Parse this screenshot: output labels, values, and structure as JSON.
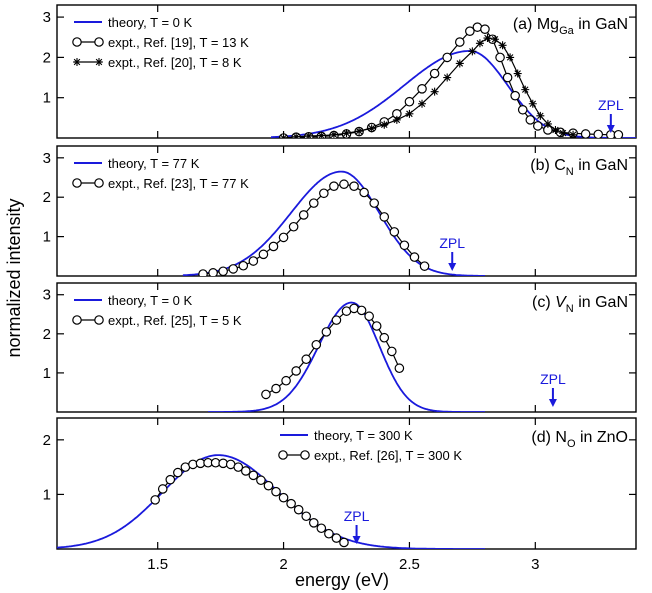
{
  "colors": {
    "theory": "#1a1adc",
    "expt": "#000000",
    "zpl": "#1a1adc"
  },
  "chart_data": [
    {
      "type": "line",
      "panel_label": "(a) Mg",
      "panel_label_sub": "Ga",
      "panel_label_suffix": " in GaN",
      "xlim": [
        1.1,
        3.4
      ],
      "ylim": [
        0,
        3.3
      ],
      "yticks": [
        1,
        2,
        3
      ],
      "legend_position": "top-left",
      "zpl": {
        "label": "ZPL",
        "x": 3.3
      },
      "series": [
        {
          "name": "theory, T = 0 K",
          "kind": "theory",
          "peak": 2.16,
          "center": 2.74,
          "sigma_left": 0.26,
          "sigma_right": 0.15,
          "x_start": 1.95,
          "x_end": 3.4,
          "points": []
        },
        {
          "name": "expt., Ref. [19], T = 13 K",
          "kind": "circle",
          "points": [
            [
              2.0,
              0.0
            ],
            [
              2.05,
              0.02
            ],
            [
              2.1,
              0.03
            ],
            [
              2.15,
              0.04
            ],
            [
              2.2,
              0.06
            ],
            [
              2.25,
              0.1
            ],
            [
              2.3,
              0.16
            ],
            [
              2.35,
              0.26
            ],
            [
              2.4,
              0.4
            ],
            [
              2.45,
              0.6
            ],
            [
              2.5,
              0.9
            ],
            [
              2.55,
              1.22
            ],
            [
              2.6,
              1.6
            ],
            [
              2.65,
              2.0
            ],
            [
              2.7,
              2.38
            ],
            [
              2.74,
              2.65
            ],
            [
              2.77,
              2.75
            ],
            [
              2.8,
              2.7
            ],
            [
              2.83,
              2.45
            ],
            [
              2.86,
              2.0
            ],
            [
              2.89,
              1.5
            ],
            [
              2.92,
              1.05
            ],
            [
              2.95,
              0.7
            ],
            [
              2.98,
              0.45
            ],
            [
              3.01,
              0.3
            ],
            [
              3.05,
              0.2
            ],
            [
              3.1,
              0.14
            ],
            [
              3.15,
              0.12
            ],
            [
              3.2,
              0.1
            ],
            [
              3.25,
              0.09
            ],
            [
              3.3,
              0.08
            ],
            [
              3.33,
              0.08
            ]
          ]
        },
        {
          "name": "expt., Ref. [20], T = 8 K",
          "kind": "star",
          "points": [
            [
              2.0,
              0.0
            ],
            [
              2.05,
              0.03
            ],
            [
              2.1,
              0.05
            ],
            [
              2.15,
              0.06
            ],
            [
              2.2,
              0.08
            ],
            [
              2.25,
              0.12
            ],
            [
              2.3,
              0.17
            ],
            [
              2.35,
              0.24
            ],
            [
              2.4,
              0.33
            ],
            [
              2.45,
              0.45
            ],
            [
              2.5,
              0.6
            ],
            [
              2.55,
              0.85
            ],
            [
              2.6,
              1.15
            ],
            [
              2.65,
              1.5
            ],
            [
              2.7,
              1.85
            ],
            [
              2.75,
              2.15
            ],
            [
              2.78,
              2.35
            ],
            [
              2.81,
              2.48
            ],
            [
              2.84,
              2.45
            ],
            [
              2.87,
              2.3
            ],
            [
              2.9,
              2.0
            ],
            [
              2.93,
              1.6
            ],
            [
              2.96,
              1.2
            ],
            [
              2.99,
              0.85
            ],
            [
              3.02,
              0.55
            ],
            [
              3.05,
              0.35
            ],
            [
              3.08,
              0.2
            ],
            [
              3.11,
              0.12
            ],
            [
              3.15,
              0.08
            ]
          ]
        }
      ]
    },
    {
      "type": "line",
      "panel_label": "(b) C",
      "panel_label_sub": "N",
      "panel_label_suffix": " in GaN",
      "xlim": [
        1.1,
        3.4
      ],
      "ylim": [
        0,
        3.3
      ],
      "yticks": [
        1,
        2,
        3
      ],
      "legend_position": "top-left",
      "zpl": {
        "label": "ZPL",
        "x": 2.67
      },
      "series": [
        {
          "name": "theory, T = 77 K",
          "kind": "theory",
          "peak": 2.65,
          "center": 2.23,
          "sigma_left": 0.2,
          "sigma_right": 0.15,
          "x_start": 1.6,
          "x_end": 2.8,
          "points": []
        },
        {
          "name": "expt., Ref. [23], T = 77 K",
          "kind": "circle",
          "points": [
            [
              1.68,
              0.05
            ],
            [
              1.72,
              0.08
            ],
            [
              1.76,
              0.12
            ],
            [
              1.8,
              0.18
            ],
            [
              1.84,
              0.26
            ],
            [
              1.88,
              0.38
            ],
            [
              1.92,
              0.55
            ],
            [
              1.96,
              0.75
            ],
            [
              2.0,
              0.98
            ],
            [
              2.04,
              1.25
            ],
            [
              2.08,
              1.55
            ],
            [
              2.12,
              1.85
            ],
            [
              2.16,
              2.1
            ],
            [
              2.2,
              2.28
            ],
            [
              2.24,
              2.33
            ],
            [
              2.28,
              2.28
            ],
            [
              2.32,
              2.12
            ],
            [
              2.36,
              1.85
            ],
            [
              2.4,
              1.5
            ],
            [
              2.44,
              1.12
            ],
            [
              2.48,
              0.78
            ],
            [
              2.52,
              0.48
            ],
            [
              2.56,
              0.25
            ]
          ]
        }
      ]
    },
    {
      "type": "line",
      "panel_label": "(c) V",
      "panel_label_sub": "N",
      "panel_label_suffix": " in GaN",
      "xlim": [
        1.1,
        3.4
      ],
      "ylim": [
        0,
        3.3
      ],
      "yticks": [
        1,
        2,
        3
      ],
      "legend_position": "top-left",
      "zpl": {
        "label": "ZPL",
        "x": 3.07
      },
      "series": [
        {
          "name": "theory, T = 0 K",
          "kind": "theory",
          "peak": 2.8,
          "center": 2.27,
          "sigma_left": 0.13,
          "sigma_right": 0.11,
          "x_start": 1.7,
          "x_end": 2.8,
          "points": []
        },
        {
          "name": "expt., Ref. [25], T = 5 K",
          "kind": "circle",
          "points": [
            [
              1.93,
              0.45
            ],
            [
              1.97,
              0.6
            ],
            [
              2.01,
              0.8
            ],
            [
              2.05,
              1.05
            ],
            [
              2.09,
              1.35
            ],
            [
              2.13,
              1.72
            ],
            [
              2.17,
              2.05
            ],
            [
              2.21,
              2.35
            ],
            [
              2.25,
              2.58
            ],
            [
              2.28,
              2.65
            ],
            [
              2.31,
              2.6
            ],
            [
              2.34,
              2.45
            ],
            [
              2.37,
              2.2
            ],
            [
              2.4,
              1.9
            ],
            [
              2.43,
              1.55
            ],
            [
              2.46,
              1.12
            ]
          ]
        }
      ]
    },
    {
      "type": "line",
      "panel_label": "(d) N",
      "panel_label_sub": "O",
      "panel_label_suffix": " in ZnO",
      "xlim": [
        1.1,
        3.4
      ],
      "ylim": [
        0,
        2.4
      ],
      "yticks": [
        1,
        2
      ],
      "legend_position": "top-center",
      "zpl": {
        "label": "ZPL",
        "x": 2.29
      },
      "xticks": [
        1.5,
        2,
        2.5,
        3
      ],
      "xtick_labels": [
        "1.5",
        "2",
        "2.5",
        "3"
      ],
      "series": [
        {
          "name": "theory, T = 300 K",
          "kind": "theory",
          "peak": 1.72,
          "center": 1.74,
          "sigma_left": 0.22,
          "sigma_right": 0.24,
          "x_start": 1.1,
          "x_end": 2.8,
          "points": []
        },
        {
          "name": "expt., Ref. [26], T = 300 K",
          "kind": "circle",
          "points": [
            [
              1.49,
              0.9
            ],
            [
              1.52,
              1.1
            ],
            [
              1.55,
              1.27
            ],
            [
              1.58,
              1.4
            ],
            [
              1.61,
              1.5
            ],
            [
              1.64,
              1.55
            ],
            [
              1.67,
              1.57
            ],
            [
              1.7,
              1.58
            ],
            [
              1.73,
              1.58
            ],
            [
              1.76,
              1.57
            ],
            [
              1.79,
              1.55
            ],
            [
              1.82,
              1.5
            ],
            [
              1.85,
              1.43
            ],
            [
              1.88,
              1.35
            ],
            [
              1.91,
              1.26
            ],
            [
              1.94,
              1.16
            ],
            [
              1.97,
              1.05
            ],
            [
              2.0,
              0.94
            ],
            [
              2.03,
              0.83
            ],
            [
              2.06,
              0.72
            ],
            [
              2.09,
              0.6
            ],
            [
              2.12,
              0.48
            ],
            [
              2.15,
              0.38
            ],
            [
              2.18,
              0.28
            ],
            [
              2.21,
              0.2
            ],
            [
              2.24,
              0.12
            ]
          ]
        }
      ]
    }
  ],
  "xlabel": "energy (eV)",
  "ylabel": "normalized intensity"
}
